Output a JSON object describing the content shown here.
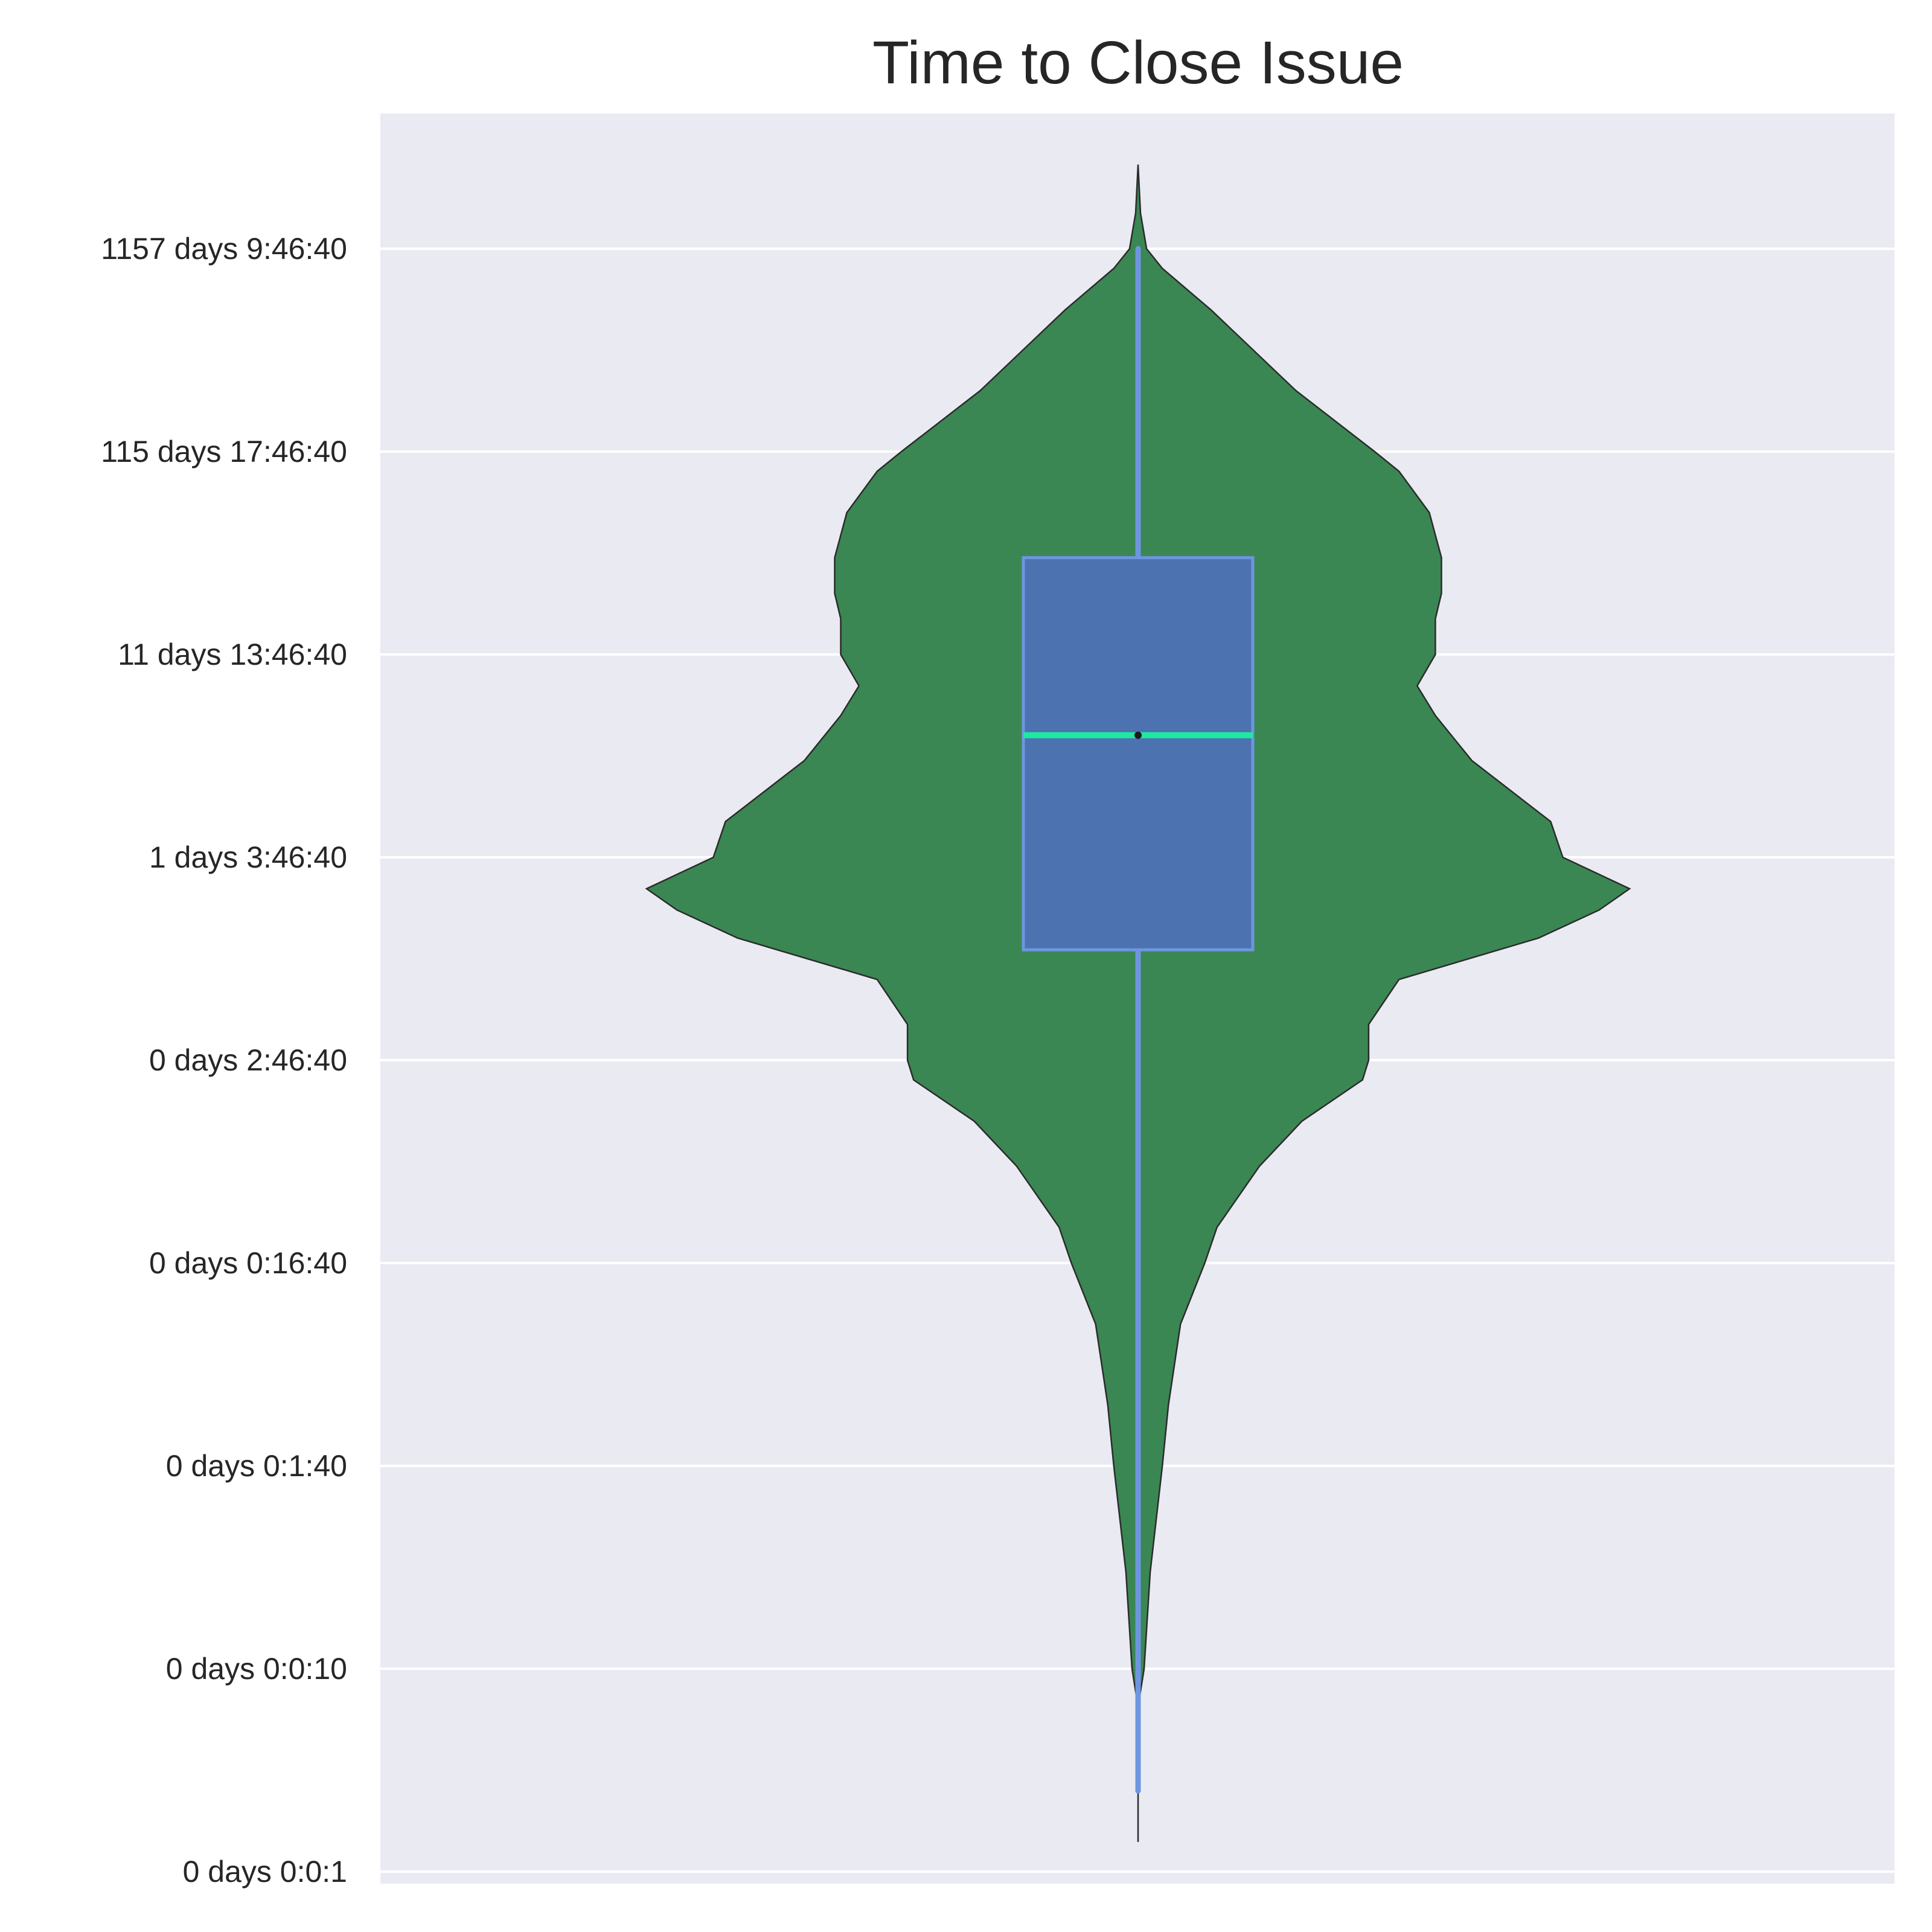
{
  "chart_data": {
    "type": "violin",
    "title": "Time to Close Issue",
    "xlabel": "",
    "ylabel": "",
    "y_scale": "log",
    "y_unit": "seconds",
    "ylim": [
      0.7,
      1000000000
    ],
    "grid": true,
    "y_ticks": [
      {
        "value": 1,
        "label": "0 days 0:0:1"
      },
      {
        "value": 10,
        "label": "0 days 0:0:10"
      },
      {
        "value": 100,
        "label": "0 days 0:1:40"
      },
      {
        "value": 1000,
        "label": "0 days 0:16:40"
      },
      {
        "value": 10000,
        "label": "0 days 2:46:40"
      },
      {
        "value": 100000,
        "label": "1 days 3:46:40"
      },
      {
        "value": 1000000,
        "label": "11 days 13:46:40"
      },
      {
        "value": 10000000,
        "label": "115 days 17:46:40"
      },
      {
        "value": 100000000,
        "label": "1157 days 9:46:40"
      }
    ],
    "box": {
      "q1": 35000,
      "median": 400000,
      "q3": 3000000,
      "whisker_low": 2.5,
      "whisker_high": 100000000,
      "data_min": 1.4,
      "data_max": 260000000
    },
    "violin_density": [
      [
        1.4,
        0.0
      ],
      [
        6.5,
        0.0
      ],
      [
        10,
        0.01
      ],
      [
        30,
        0.02
      ],
      [
        100,
        0.04
      ],
      [
        200,
        0.05
      ],
      [
        500,
        0.07
      ],
      [
        1000,
        0.11
      ],
      [
        1500,
        0.13
      ],
      [
        3000,
        0.2
      ],
      [
        5000,
        0.27
      ],
      [
        8000,
        0.37
      ],
      [
        10000,
        0.38
      ],
      [
        15000,
        0.38
      ],
      [
        25000,
        0.43
      ],
      [
        40000,
        0.66
      ],
      [
        55000,
        0.76
      ],
      [
        70000,
        0.81
      ],
      [
        100000,
        0.7
      ],
      [
        150000,
        0.68
      ],
      [
        300000,
        0.55
      ],
      [
        500000,
        0.49
      ],
      [
        700000,
        0.46
      ],
      [
        1000000,
        0.49
      ],
      [
        1500000,
        0.49
      ],
      [
        2000000,
        0.5
      ],
      [
        3000000,
        0.5
      ],
      [
        5000000,
        0.48
      ],
      [
        8000000,
        0.43
      ],
      [
        10000000,
        0.39
      ],
      [
        20000000,
        0.26
      ],
      [
        50000000,
        0.12
      ],
      [
        80000000,
        0.04
      ],
      [
        100000000,
        0.014
      ],
      [
        150000000,
        0.004
      ],
      [
        260000000,
        0.0
      ]
    ],
    "colors": {
      "violin_fill": "#3a8754",
      "box_fill": "#4c72b0",
      "box_edge": "#6e96e0",
      "whisker": "#6e96e0",
      "median": "#1de9a2",
      "plot_bg": "#eaeaf2",
      "grid": "#ffffff"
    }
  }
}
